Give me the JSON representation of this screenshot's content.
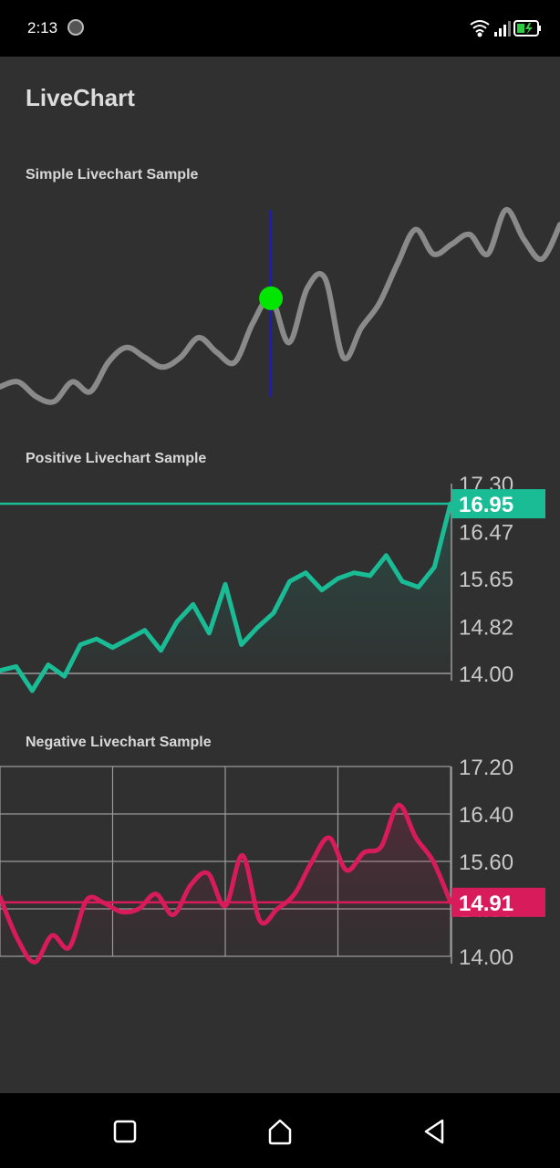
{
  "status": {
    "time": "2:13"
  },
  "app": {
    "title": "LiveChart"
  },
  "colors": {
    "background": "#303030",
    "simple_line": "#8a8a8a",
    "positive": "#1abc96",
    "negative": "#d81b5a",
    "cursor": "#1a1acd",
    "cursor_dot": "#00e600",
    "grid": "#9a9a9a"
  },
  "charts": {
    "simple": {
      "label": "Simple Livechart Sample"
    },
    "positive": {
      "label": "Positive Livechart Sample",
      "badge": "16.95"
    },
    "negative": {
      "label": "Negative Livechart Sample",
      "badge": "14.91"
    }
  },
  "chart_data": [
    {
      "type": "line",
      "title": "Simple Livechart Sample",
      "values": [
        14.2,
        14.3,
        14.0,
        13.9,
        14.3,
        14.1,
        14.7,
        15.0,
        14.8,
        14.6,
        14.8,
        15.2,
        14.9,
        14.7,
        15.5,
        16.0,
        15.1,
        16.2,
        16.4,
        14.8,
        15.4,
        15.9,
        16.7,
        17.4,
        16.9,
        17.1,
        17.3,
        16.9,
        17.8,
        17.2,
        16.8,
        17.5
      ]
    },
    {
      "type": "line",
      "title": "Positive Livechart Sample",
      "values": [
        14.05,
        14.12,
        13.7,
        14.15,
        13.95,
        14.5,
        14.6,
        14.45,
        14.6,
        14.75,
        14.4,
        14.9,
        15.2,
        14.7,
        15.55,
        14.5,
        14.8,
        15.05,
        15.6,
        15.75,
        15.45,
        15.65,
        15.75,
        15.7,
        16.05,
        15.6,
        15.5,
        15.85,
        16.95
      ],
      "yticks": [
        14.0,
        14.82,
        15.65,
        16.47,
        17.3
      ],
      "ylim": [
        14.0,
        17.3
      ],
      "current": 16.95,
      "baseline": 14.0
    },
    {
      "type": "line",
      "title": "Negative Livechart Sample",
      "values": [
        15.0,
        14.3,
        13.9,
        14.35,
        14.15,
        14.95,
        14.9,
        14.75,
        14.8,
        15.05,
        14.7,
        15.2,
        15.4,
        14.85,
        15.7,
        14.6,
        14.8,
        15.05,
        15.6,
        16.0,
        15.45,
        15.75,
        15.85,
        16.55,
        16.0,
        15.6,
        14.91
      ],
      "yticks": [
        14.0,
        14.8,
        15.6,
        16.4,
        17.2
      ],
      "ylim": [
        14.0,
        17.2
      ],
      "current": 14.91,
      "grid": true
    }
  ]
}
